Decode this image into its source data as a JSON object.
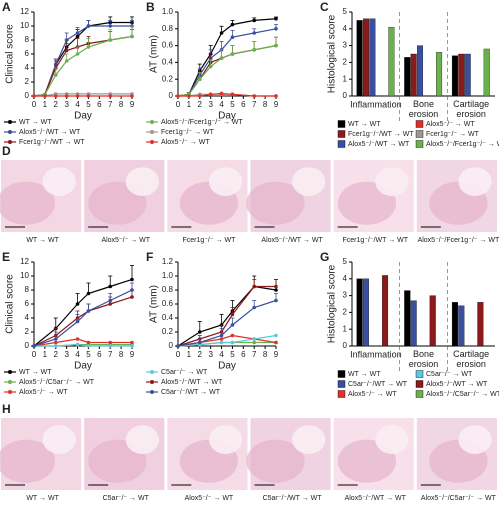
{
  "chart_data": [
    {
      "panel": "A",
      "type": "line",
      "ylabel": "Clinical score",
      "xlabel": "Day",
      "x": [
        0,
        1,
        2,
        3,
        4,
        5,
        7,
        9
      ],
      "xlim": [
        0,
        9
      ],
      "xticks": [
        0,
        1,
        2,
        3,
        4,
        5,
        6,
        7,
        8,
        9
      ],
      "ylim": [
        0,
        12
      ],
      "yticks": [
        0,
        2,
        4,
        6,
        8,
        10,
        12
      ],
      "series": [
        {
          "name": "WT → WT",
          "color": "#000000",
          "values": [
            0,
            0.2,
            4.5,
            7,
            8.5,
            10,
            10.5,
            10.5
          ],
          "errors": [
            0,
            0.1,
            0.8,
            1,
            1,
            0.8,
            0.8,
            0.8
          ]
        },
        {
          "name": "Alox5⁻/⁻/WT → WT",
          "color": "#3a4fa0",
          "values": [
            0,
            0.2,
            4.5,
            8,
            9,
            10,
            10,
            10
          ],
          "errors": [
            0,
            0.1,
            0.8,
            1,
            0.8,
            0.8,
            0.8,
            0.8
          ]
        },
        {
          "name": "Fcer1g⁻/⁻/WT → WT",
          "color": "#8b1a1a",
          "values": [
            0,
            0.2,
            4,
            6.5,
            7,
            7.5,
            8,
            8.5
          ],
          "errors": [
            0,
            0.1,
            1,
            1,
            1.2,
            1,
            1.2,
            1
          ]
        },
        {
          "name": "Alox5⁻/⁻/Fcer1g⁻/⁻ → WT",
          "color": "#6ab04c",
          "values": [
            0,
            0.2,
            3,
            5,
            6,
            7,
            8,
            8.5
          ],
          "errors": [
            0,
            0.1,
            1,
            1,
            1,
            1.2,
            1.5,
            1.5
          ]
        },
        {
          "name": "Fcer1g⁻/⁻ → WT",
          "color": "#999999",
          "values": [
            0,
            0,
            0.3,
            0.3,
            0.3,
            0.3,
            0.3,
            0.3
          ]
        },
        {
          "name": "Alox5⁻/⁻ → WT",
          "color": "#e0302a",
          "values": [
            0,
            0,
            0,
            0,
            0,
            0,
            0,
            0
          ]
        }
      ]
    },
    {
      "panel": "B",
      "type": "line",
      "ylabel": "AT (mm)",
      "xlabel": "Day",
      "x": [
        0,
        1,
        2,
        3,
        4,
        5,
        7,
        9
      ],
      "xlim": [
        0,
        9
      ],
      "xticks": [
        0,
        1,
        2,
        3,
        4,
        5,
        6,
        7,
        8,
        9
      ],
      "ylim": [
        0,
        1
      ],
      "yticks": [
        0,
        0.2,
        0.4,
        0.6,
        0.8,
        {
          "value": 1,
          "label": "1.0"
        }
      ],
      "series": [
        {
          "color": "#000000",
          "values": [
            0,
            0.02,
            0.3,
            0.5,
            0.75,
            0.85,
            0.9,
            0.92
          ],
          "errors": [
            0,
            0.02,
            0.08,
            0.1,
            0.08,
            0.05,
            0.03,
            0.02
          ]
        },
        {
          "color": "#3a4fa0",
          "values": [
            0,
            0.02,
            0.25,
            0.45,
            0.55,
            0.7,
            0.75,
            0.8
          ],
          "errors": [
            0,
            0.02,
            0.08,
            0.1,
            0.1,
            0.08,
            0.05,
            0.05
          ]
        },
        {
          "color": "#8b1a1a",
          "values": [
            0,
            0.02,
            0.2,
            0.4,
            0.45,
            0.5,
            0.55,
            0.6
          ],
          "errors": [
            0,
            0.02,
            0.08,
            0.1,
            0.1,
            0.1,
            0.1,
            0.1
          ]
        },
        {
          "color": "#6ab04c",
          "values": [
            0,
            0.02,
            0.2,
            0.35,
            0.45,
            0.5,
            0.55,
            0.6
          ],
          "errors": [
            0,
            0.02,
            0.08,
            0.08,
            0.1,
            0.1,
            0.1,
            0.1
          ]
        },
        {
          "color": "#999999",
          "values": [
            0,
            0,
            0.02,
            0.02,
            0.02,
            0.02,
            0,
            0
          ]
        },
        {
          "color": "#e0302a",
          "values": [
            0,
            0,
            0,
            0.02,
            0.03,
            0.02,
            0,
            0
          ]
        }
      ]
    },
    {
      "panel": "C",
      "type": "bar",
      "ylabel": "Histological score",
      "categories": [
        "Inflammation",
        "Bone erosion",
        "Cartilage erosion"
      ],
      "ylim": [
        0,
        5
      ],
      "yticks": [
        0,
        1,
        2,
        3,
        4,
        5
      ],
      "series": [
        {
          "name": "WT → WT",
          "color": "#000000",
          "values": [
            4.5,
            2.3,
            2.4
          ]
        },
        {
          "name": "Fcer1g⁻/⁻/WT → WT",
          "color": "#8b1a1a",
          "values": [
            4.6,
            2.5,
            2.5
          ]
        },
        {
          "name": "Alox5⁻/⁻/WT → WT",
          "color": "#3a4fa0",
          "values": [
            4.6,
            3,
            2.5
          ]
        },
        {
          "name": "Alox5⁻/⁻ → WT",
          "color": "#e0302a",
          "values": [
            0,
            0,
            0
          ]
        },
        {
          "name": "Fcer1g⁻/⁻ → WT",
          "color": "#999999",
          "values": [
            0,
            0,
            0
          ]
        },
        {
          "name": "Alox5⁻/⁻/Fcer1g⁻/⁻ → WT",
          "color": "#6ab04c",
          "values": [
            4.1,
            2.6,
            2.8
          ]
        }
      ]
    },
    {
      "panel": "E",
      "type": "line",
      "ylabel": "Clinical score",
      "xlabel": "Day",
      "x": [
        0,
        2,
        4,
        5,
        7,
        9
      ],
      "xlim": [
        0,
        9
      ],
      "xticks": [
        0,
        1,
        2,
        3,
        4,
        5,
        6,
        7,
        8,
        9
      ],
      "ylim": [
        0,
        12
      ],
      "yticks": [
        0,
        2,
        4,
        6,
        8,
        10,
        12
      ],
      "series": [
        {
          "name": "WT → WT",
          "color": "#000000",
          "values": [
            0,
            2.5,
            6,
            7.5,
            8.5,
            9.5
          ],
          "errors": [
            0,
            1.5,
            1.5,
            1.5,
            1.5,
            2
          ]
        },
        {
          "name": "Alox5⁻/⁻/C5ar⁻/⁻ → WT",
          "color": "#6ab04c",
          "values": [
            0,
            0,
            0.2,
            0.2,
            0.2,
            0.2
          ]
        },
        {
          "name": "Alox5⁻/⁻ → WT",
          "color": "#e0302a",
          "values": [
            0,
            0.5,
            1,
            0.5,
            0.5,
            0.5
          ]
        },
        {
          "name": "C5ar⁻/⁻ → WT",
          "color": "#5bc8e0",
          "values": [
            0,
            0,
            0.2,
            0,
            0,
            0
          ]
        },
        {
          "name": "Alox5⁻/⁻/WT → WT",
          "color": "#8b1a1a",
          "values": [
            0,
            1.5,
            4,
            5,
            6,
            7
          ],
          "errors": [
            0,
            1,
            1,
            1,
            1,
            1
          ]
        },
        {
          "name": "C5ar⁻/⁻/WT → WT",
          "color": "#3a4fa0",
          "values": [
            0,
            1,
            3.5,
            5,
            6.5,
            8
          ],
          "errors": [
            0,
            1,
            1,
            1,
            1,
            1
          ]
        }
      ]
    },
    {
      "panel": "F",
      "type": "line",
      "ylabel": "AT (mm)",
      "xlabel": "Day",
      "x": [
        0,
        2,
        4,
        5,
        7,
        9
      ],
      "xlim": [
        0,
        9
      ],
      "xticks": [
        0,
        1,
        2,
        3,
        4,
        5,
        6,
        7,
        8,
        9
      ],
      "ylim": [
        0,
        1.2
      ],
      "yticks": [
        0,
        0.2,
        0.4,
        0.6,
        0.8,
        {
          "value": 1,
          "label": "1.0"
        },
        1.2
      ],
      "series": [
        {
          "color": "#000000",
          "values": [
            0,
            0.2,
            0.3,
            0.5,
            0.85,
            0.8
          ],
          "errors": [
            0,
            0.15,
            0.15,
            0.15,
            0.15,
            0.15
          ]
        },
        {
          "color": "#6ab04c",
          "values": [
            0,
            0.02,
            0.05,
            0.05,
            0.05,
            0.05
          ]
        },
        {
          "color": "#e0302a",
          "values": [
            0,
            0.05,
            0.1,
            0.15,
            0.1,
            0.05
          ]
        },
        {
          "color": "#5bc8e0",
          "values": [
            0,
            0.02,
            0.05,
            0.05,
            0.1,
            0.15
          ]
        },
        {
          "color": "#8b1a1a",
          "values": [
            0,
            0.1,
            0.2,
            0.45,
            0.85,
            0.85
          ],
          "errors": [
            0,
            0.05,
            0.1,
            0.1,
            0.1,
            0.1
          ]
        },
        {
          "color": "#3a4fa0",
          "values": [
            0,
            0.05,
            0.15,
            0.3,
            0.55,
            0.65
          ],
          "errors": [
            0,
            0.05,
            0.1,
            0.1,
            0.1,
            0.1
          ]
        }
      ]
    },
    {
      "panel": "G",
      "type": "bar",
      "ylabel": "Histological score",
      "categories": [
        "Inflammation",
        "Bone erosion",
        "Cartilage erosion"
      ],
      "ylim": [
        0,
        5
      ],
      "yticks": [
        0,
        1,
        2,
        3,
        4,
        5
      ],
      "series": [
        {
          "name": "WT → WT",
          "color": "#000000",
          "values": [
            4,
            3.3,
            2.6
          ]
        },
        {
          "name": "C5ar⁻/⁻/WT → WT",
          "color": "#3a4fa0",
          "values": [
            4,
            2.7,
            2.4
          ]
        },
        {
          "name": "Alox5⁻/⁻ → WT",
          "color": "#e0302a",
          "values": [
            0,
            0,
            0
          ]
        },
        {
          "name": "C5ar⁻/⁻ → WT",
          "color": "#5bc8e0",
          "values": [
            0,
            0,
            0
          ]
        },
        {
          "name": "Alox5⁻/⁻/WT → WT",
          "color": "#8b1a1a",
          "values": [
            4.2,
            3,
            2.6
          ]
        },
        {
          "name": "Alox5⁻/⁻/C5ar⁻/⁻ → WT",
          "color": "#6ab04c",
          "values": [
            0,
            0,
            0
          ]
        }
      ]
    }
  ],
  "histology": [
    {
      "panel": "D",
      "captions": [
        "WT → WT",
        "Alox5⁻/⁻ → WT",
        "Fcer1g⁻/⁻ → WT",
        "Alox5⁻/⁻/WT → WT",
        "Fcer1g⁻/⁻/WT → WT",
        "Alox5⁻/⁻/Fcer1g⁻/⁻ → WT"
      ]
    },
    {
      "panel": "H",
      "captions": [
        "WT → WT",
        "C5ar⁻/⁻ → WT",
        "Alox5⁻/⁻ → WT",
        "C5ar⁻/⁻/WT → WT",
        "Alox5⁻/⁻/WT → WT",
        "Alox5⁻/⁻/C5ar⁻/⁻ → WT"
      ]
    }
  ]
}
